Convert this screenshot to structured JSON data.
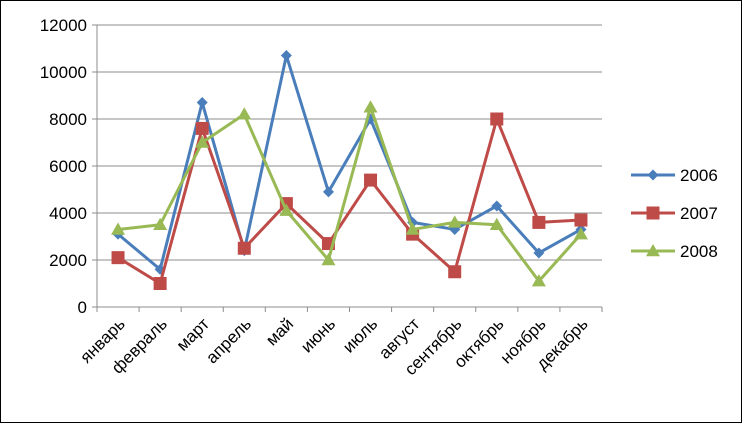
{
  "chart_data": {
    "type": "line",
    "title": "",
    "xlabel": "",
    "ylabel": "",
    "categories": [
      "январь",
      "февраль",
      "март",
      "апрель",
      "май",
      "июнь",
      "июль",
      "август",
      "сентябрь",
      "октябрь",
      "ноябрь",
      "декабрь"
    ],
    "ylim": [
      0,
      12000
    ],
    "yticks": [
      0,
      2000,
      4000,
      6000,
      8000,
      10000,
      12000
    ],
    "grid": true,
    "legend_position": "right",
    "series": [
      {
        "name": "2006",
        "color": "#4a7ebb",
        "marker": "diamond",
        "values": [
          3100,
          1600,
          8700,
          2400,
          10700,
          4900,
          8000,
          3600,
          3300,
          4300,
          2300,
          3300
        ]
      },
      {
        "name": "2007",
        "color": "#be4b48",
        "marker": "square",
        "values": [
          2100,
          1000,
          7600,
          2500,
          4400,
          2700,
          5400,
          3100,
          1500,
          8000,
          3600,
          3700
        ]
      },
      {
        "name": "2008",
        "color": "#98b954",
        "marker": "triangle",
        "values": [
          3300,
          3500,
          7000,
          8200,
          4100,
          2000,
          8500,
          3300,
          3600,
          3500,
          1100,
          3100
        ]
      }
    ]
  }
}
